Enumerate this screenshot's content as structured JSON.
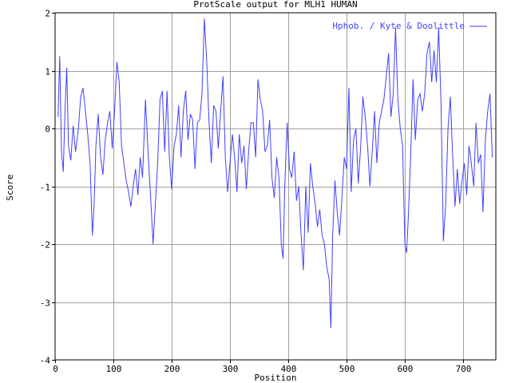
{
  "chart_data": {
    "type": "line",
    "title": "ProtScale output for MLH1 HUMAN",
    "xlabel": "Position",
    "ylabel": "Score",
    "xlim": [
      0,
      756
    ],
    "ylim": [
      -4,
      2
    ],
    "x_ticks": [
      "0",
      "100",
      "200",
      "300",
      "400",
      "500",
      "600",
      "700"
    ],
    "y_ticks": [
      "2",
      "1",
      "0",
      "-1",
      "-2",
      "-3",
      "-4"
    ],
    "grid": true,
    "legend_placement": "top-right",
    "series": [
      {
        "name": "Hphob. / Kyte & Doolittle",
        "color": "#4040ff",
        "points": [
          [
            5,
            0.2
          ],
          [
            8,
            1.25
          ],
          [
            11,
            -0.4
          ],
          [
            14,
            -0.75
          ],
          [
            17,
            0.3
          ],
          [
            20,
            1.05
          ],
          [
            23,
            -0.3
          ],
          [
            27,
            -0.55
          ],
          [
            31,
            0.05
          ],
          [
            35,
            -0.4
          ],
          [
            40,
            0.0
          ],
          [
            44,
            0.55
          ],
          [
            48,
            0.7
          ],
          [
            52,
            0.3
          ],
          [
            56,
            -0.1
          ],
          [
            60,
            -0.6
          ],
          [
            64,
            -1.85
          ],
          [
            67,
            -1.3
          ],
          [
            70,
            -0.3
          ],
          [
            74,
            0.25
          ],
          [
            78,
            -0.5
          ],
          [
            82,
            -0.8
          ],
          [
            86,
            -0.2
          ],
          [
            90,
            0.1
          ],
          [
            94,
            0.3
          ],
          [
            98,
            -0.35
          ],
          [
            102,
            0.3
          ],
          [
            106,
            1.15
          ],
          [
            110,
            0.8
          ],
          [
            114,
            -0.3
          ],
          [
            118,
            -0.6
          ],
          [
            122,
            -0.9
          ],
          [
            126,
            -1.1
          ],
          [
            130,
            -1.35
          ],
          [
            134,
            -1.0
          ],
          [
            138,
            -0.7
          ],
          [
            142,
            -1.15
          ],
          [
            146,
            -0.5
          ],
          [
            150,
            -0.85
          ],
          [
            155,
            0.5
          ],
          [
            160,
            -0.5
          ],
          [
            164,
            -1.2
          ],
          [
            168,
            -2.0
          ],
          [
            172,
            -1.3
          ],
          [
            176,
            -0.6
          ],
          [
            180,
            0.5
          ],
          [
            184,
            0.65
          ],
          [
            188,
            -0.4
          ],
          [
            192,
            0.65
          ],
          [
            196,
            -0.5
          ],
          [
            200,
            -1.05
          ],
          [
            204,
            -0.3
          ],
          [
            208,
            -0.1
          ],
          [
            212,
            0.4
          ],
          [
            216,
            -0.5
          ],
          [
            220,
            0.3
          ],
          [
            224,
            0.65
          ],
          [
            228,
            -0.2
          ],
          [
            232,
            0.25
          ],
          [
            236,
            0.15
          ],
          [
            240,
            -0.7
          ],
          [
            244,
            0.1
          ],
          [
            248,
            0.15
          ],
          [
            252,
            0.6
          ],
          [
            256,
            1.9
          ],
          [
            260,
            1.2
          ],
          [
            264,
            0.1
          ],
          [
            268,
            -0.6
          ],
          [
            272,
            0.4
          ],
          [
            276,
            0.3
          ],
          [
            280,
            -0.35
          ],
          [
            284,
            0.3
          ],
          [
            288,
            0.9
          ],
          [
            292,
            -0.5
          ],
          [
            296,
            -1.1
          ],
          [
            300,
            -0.6
          ],
          [
            304,
            -0.1
          ],
          [
            308,
            -0.5
          ],
          [
            312,
            -1.1
          ],
          [
            316,
            -0.1
          ],
          [
            320,
            -0.6
          ],
          [
            324,
            -0.3
          ],
          [
            328,
            -1.05
          ],
          [
            332,
            -0.4
          ],
          [
            336,
            0.1
          ],
          [
            340,
            0.1
          ],
          [
            344,
            -0.5
          ],
          [
            348,
            0.85
          ],
          [
            352,
            0.5
          ],
          [
            356,
            0.3
          ],
          [
            360,
            -0.4
          ],
          [
            364,
            -0.3
          ],
          [
            368,
            0.15
          ],
          [
            372,
            -0.85
          ],
          [
            376,
            -1.2
          ],
          [
            380,
            -0.5
          ],
          [
            384,
            -0.85
          ],
          [
            388,
            -2.0
          ],
          [
            391,
            -2.25
          ],
          [
            394,
            -1.0
          ],
          [
            398,
            0.1
          ],
          [
            402,
            -0.7
          ],
          [
            406,
            -0.85
          ],
          [
            410,
            -0.4
          ],
          [
            414,
            -1.25
          ],
          [
            418,
            -1.0
          ],
          [
            422,
            -1.85
          ],
          [
            426,
            -2.45
          ],
          [
            430,
            -1.0
          ],
          [
            434,
            -1.8
          ],
          [
            438,
            -0.6
          ],
          [
            442,
            -1.0
          ],
          [
            446,
            -1.3
          ],
          [
            450,
            -1.7
          ],
          [
            454,
            -1.4
          ],
          [
            458,
            -1.85
          ],
          [
            462,
            -2.0
          ],
          [
            466,
            -2.4
          ],
          [
            470,
            -2.6
          ],
          [
            473,
            -3.45
          ],
          [
            476,
            -1.85
          ],
          [
            480,
            -0.9
          ],
          [
            484,
            -1.45
          ],
          [
            488,
            -1.85
          ],
          [
            492,
            -1.2
          ],
          [
            496,
            -0.5
          ],
          [
            500,
            -0.7
          ],
          [
            504,
            0.7
          ],
          [
            508,
            -1.1
          ],
          [
            512,
            -0.2
          ],
          [
            516,
            0.0
          ],
          [
            520,
            -0.95
          ],
          [
            524,
            -0.35
          ],
          [
            528,
            0.55
          ],
          [
            532,
            0.2
          ],
          [
            536,
            -0.3
          ],
          [
            540,
            -1.0
          ],
          [
            544,
            -0.4
          ],
          [
            548,
            0.3
          ],
          [
            552,
            -0.6
          ],
          [
            556,
            0.1
          ],
          [
            560,
            0.3
          ],
          [
            564,
            0.5
          ],
          [
            568,
            0.9
          ],
          [
            572,
            1.3
          ],
          [
            576,
            0.2
          ],
          [
            580,
            0.6
          ],
          [
            584,
            1.75
          ],
          [
            588,
            0.5
          ],
          [
            592,
            0.0
          ],
          [
            596,
            -0.3
          ],
          [
            600,
            -2.0
          ],
          [
            603,
            -2.15
          ],
          [
            606,
            -1.5
          ],
          [
            610,
            -0.45
          ],
          [
            614,
            0.85
          ],
          [
            618,
            -0.2
          ],
          [
            622,
            0.5
          ],
          [
            626,
            0.6
          ],
          [
            630,
            0.3
          ],
          [
            634,
            0.6
          ],
          [
            638,
            1.3
          ],
          [
            642,
            1.5
          ],
          [
            646,
            0.8
          ],
          [
            650,
            1.35
          ],
          [
            654,
            0.8
          ],
          [
            658,
            1.75
          ],
          [
            662,
            0.4
          ],
          [
            666,
            -1.95
          ],
          [
            670,
            -1.3
          ],
          [
            674,
            0.0
          ],
          [
            678,
            0.55
          ],
          [
            682,
            -0.5
          ],
          [
            686,
            -1.35
          ],
          [
            690,
            -0.7
          ],
          [
            694,
            -1.3
          ],
          [
            698,
            -0.9
          ],
          [
            702,
            -0.6
          ],
          [
            706,
            -1.15
          ],
          [
            710,
            -0.3
          ],
          [
            714,
            -0.6
          ],
          [
            718,
            -1.0
          ],
          [
            722,
            0.1
          ],
          [
            726,
            -0.6
          ],
          [
            730,
            -0.45
          ],
          [
            734,
            -1.45
          ],
          [
            738,
            -0.2
          ],
          [
            742,
            0.3
          ],
          [
            746,
            0.6
          ],
          [
            750,
            -0.5
          ]
        ]
      }
    ]
  }
}
